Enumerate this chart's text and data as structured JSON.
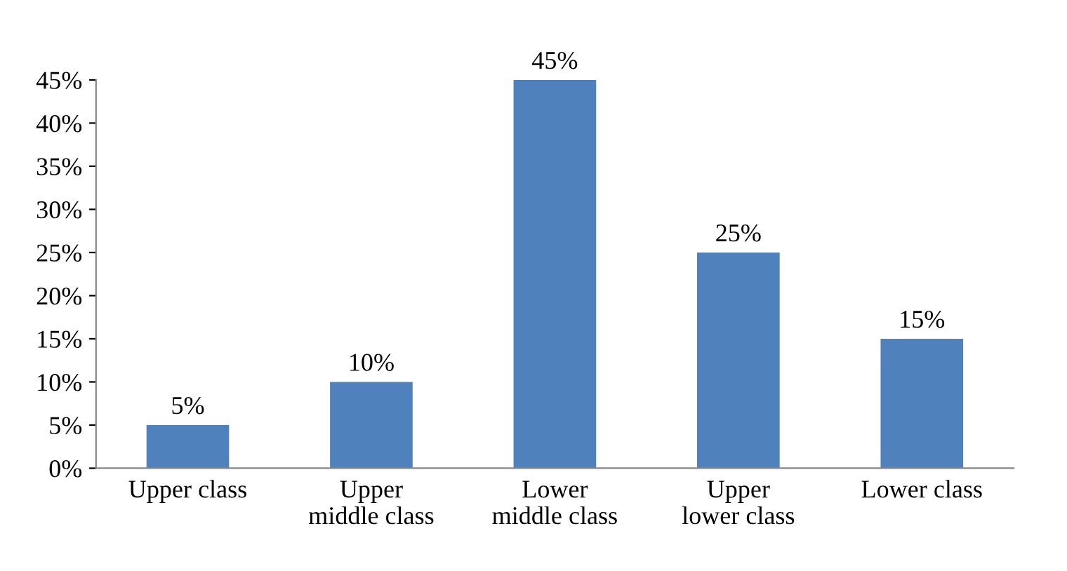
{
  "chart_data": {
    "type": "bar",
    "categories": [
      "Upper class",
      "Upper\nmiddle class",
      "Lower\nmiddle class",
      "Upper\nlower class",
      "Lower class"
    ],
    "values": [
      5,
      10,
      45,
      25,
      15
    ],
    "value_labels": [
      "5%",
      "10%",
      "45%",
      "25%",
      "15%"
    ],
    "color": "#4f81bd",
    "ylim": [
      0,
      45
    ],
    "yticks": [
      {
        "value": 0,
        "label": "0%"
      },
      {
        "value": 5,
        "label": "5%"
      },
      {
        "value": 10,
        "label": "10%"
      },
      {
        "value": 15,
        "label": "15%"
      },
      {
        "value": 20,
        "label": "20%"
      },
      {
        "value": 25,
        "label": "25%"
      },
      {
        "value": 30,
        "label": "30%"
      },
      {
        "value": 35,
        "label": "35%"
      },
      {
        "value": 40,
        "label": "40%"
      },
      {
        "value": 45,
        "label": "45%"
      }
    ],
    "grid": false,
    "legend": false
  }
}
